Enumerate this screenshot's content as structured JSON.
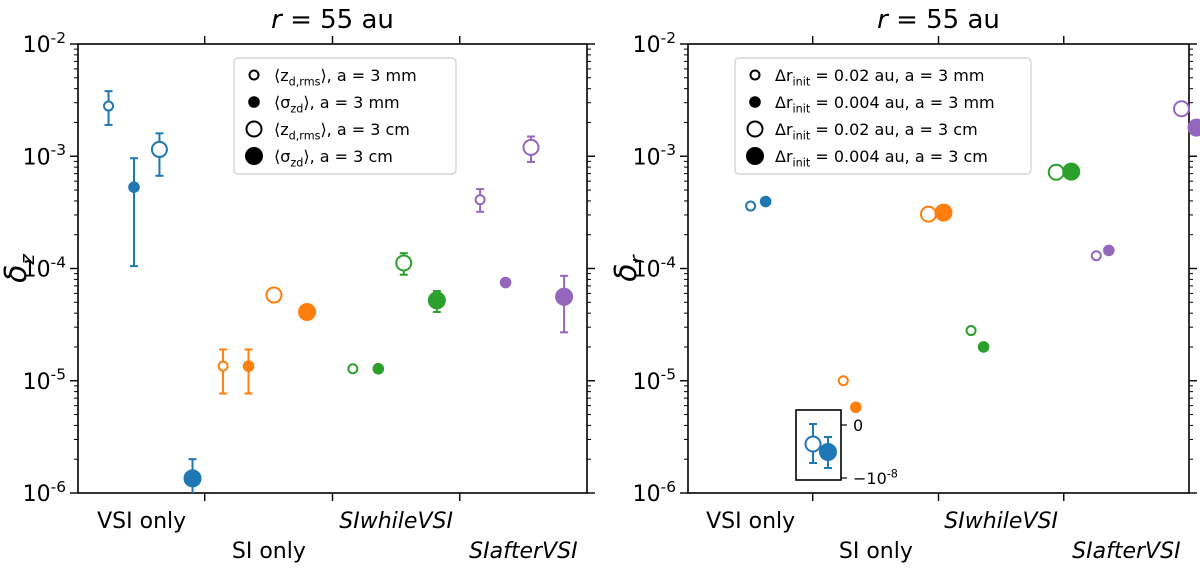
{
  "colors": {
    "VSI only": "#1f77b4",
    "SI only": "#ff7f0e",
    "SIwhileVSI": "#2ca02c",
    "SIafterVSI": "#9467bd"
  },
  "chart_data": [
    {
      "type": "scatter",
      "yscale": "log",
      "ylim": [
        1e-06,
        0.01
      ],
      "title": "r = 55 au",
      "ylabel": "δ_z",
      "ytick_labels": [
        "10^-6",
        "10^-5",
        "10^-4",
        "10^-3",
        "10^-2"
      ],
      "categories": [
        "VSI only",
        "SI only",
        "SIwhileVSI",
        "SIafterVSI"
      ],
      "category_italic": [
        false,
        false,
        true,
        true
      ],
      "legend_position": "upper center",
      "legend": [
        {
          "label": "⟨z_d,rms⟩, a = 3 mm",
          "marker": "open-small"
        },
        {
          "label": "⟨σ_zd⟩, a = 3 mm",
          "marker": "filled-small"
        },
        {
          "label": "⟨z_d,rms⟩, a = 3 cm",
          "marker": "open-large"
        },
        {
          "label": "⟨σ_zd⟩, a = 3 cm",
          "marker": "filled-large"
        }
      ],
      "points": [
        {
          "category": "VSI only",
          "series": 0,
          "y": 0.0028,
          "ylo": 0.0019,
          "yhi": 0.0038
        },
        {
          "category": "VSI only",
          "series": 1,
          "y": 0.00053,
          "ylo": 0.000105,
          "yhi": 0.00096
        },
        {
          "category": "VSI only",
          "series": 2,
          "y": 0.00115,
          "ylo": 0.00067,
          "yhi": 0.0016
        },
        {
          "category": "VSI only",
          "series": 3,
          "y": 1.35e-06,
          "ylo": 1e-06,
          "yhi": 2e-06
        },
        {
          "category": "SI only",
          "series": 0,
          "y": 1.35e-05,
          "ylo": 7.7e-06,
          "yhi": 1.9e-05
        },
        {
          "category": "SI only",
          "series": 1,
          "y": 1.35e-05,
          "ylo": 7.7e-06,
          "yhi": 1.9e-05
        },
        {
          "category": "SI only",
          "series": 2,
          "y": 5.8e-05,
          "ylo": 5.3e-05,
          "yhi": 6.4e-05
        },
        {
          "category": "SI only",
          "series": 3,
          "y": 4.1e-05,
          "ylo": 4e-05,
          "yhi": 4.2e-05
        },
        {
          "category": "SIwhileVSI",
          "series": 0,
          "y": 1.28e-05,
          "ylo": 1.23e-05,
          "yhi": 1.33e-05
        },
        {
          "category": "SIwhileVSI",
          "series": 1,
          "y": 1.28e-05,
          "ylo": 1.26e-05,
          "yhi": 1.3e-05
        },
        {
          "category": "SIwhileVSI",
          "series": 2,
          "y": 0.000112,
          "ylo": 8.8e-05,
          "yhi": 0.000137
        },
        {
          "category": "SIwhileVSI",
          "series": 3,
          "y": 5.2e-05,
          "ylo": 4.1e-05,
          "yhi": 6.3e-05
        },
        {
          "category": "SIafterVSI",
          "series": 0,
          "y": 0.00041,
          "ylo": 0.00032,
          "yhi": 0.00051
        },
        {
          "category": "SIafterVSI",
          "series": 1,
          "y": 7.5e-05,
          "ylo": 7.3e-05,
          "yhi": 7.7e-05
        },
        {
          "category": "SIafterVSI",
          "series": 2,
          "y": 0.0012,
          "ylo": 0.00089,
          "yhi": 0.0015
        },
        {
          "category": "SIafterVSI",
          "series": 3,
          "y": 5.6e-05,
          "ylo": 2.7e-05,
          "yhi": 8.6e-05
        }
      ]
    },
    {
      "type": "scatter",
      "yscale": "log",
      "ylim": [
        1e-06,
        0.01
      ],
      "title": "r = 55 au",
      "ylabel": "δ_r",
      "ytick_labels": [
        "10^-6",
        "10^-5",
        "10^-4",
        "10^-3",
        "10^-2"
      ],
      "categories": [
        "VSI only",
        "SI only",
        "SIwhileVSI",
        "SIafterVSI"
      ],
      "category_italic": [
        false,
        false,
        true,
        true
      ],
      "legend_position": "upper left",
      "legend": [
        {
          "label": "Δr_init = 0.02 au, a = 3 mm",
          "marker": "open-small"
        },
        {
          "label": "Δr_init = 0.004 au, a = 3 mm",
          "marker": "filled-small"
        },
        {
          "label": "Δr_init = 0.02 au, a = 3 cm",
          "marker": "open-large"
        },
        {
          "label": "Δr_init = 0.004 au, a = 3 cm",
          "marker": "filled-large"
        }
      ],
      "points": [
        {
          "category": "VSI only",
          "series": 0,
          "y": 0.00036,
          "ylo": 0.00034,
          "yhi": 0.00038
        },
        {
          "category": "VSI only",
          "series": 1,
          "y": 0.000395,
          "ylo": 0.000375,
          "yhi": 0.000415
        },
        {
          "category": "SI only",
          "series": 0,
          "y": 1e-05,
          "ylo": 9.8e-06,
          "yhi": 1.02e-05
        },
        {
          "category": "SI only",
          "series": 1,
          "y": 5.8e-06,
          "ylo": 5.7e-06,
          "yhi": 5.9e-06
        },
        {
          "category": "SI only",
          "series": 2,
          "y": 0.000305,
          "ylo": 0.00029,
          "yhi": 0.00032
        },
        {
          "category": "SI only",
          "series": 3,
          "y": 0.000315,
          "ylo": 0.00031,
          "yhi": 0.00032
        },
        {
          "category": "SIwhileVSI",
          "series": 0,
          "y": 2.8e-05,
          "ylo": 2.7e-05,
          "yhi": 2.9e-05
        },
        {
          "category": "SIwhileVSI",
          "series": 1,
          "y": 2e-05,
          "ylo": 1.95e-05,
          "yhi": 2.05e-05
        },
        {
          "category": "SIwhileVSI",
          "series": 2,
          "y": 0.00072,
          "ylo": 0.00066,
          "yhi": 0.00078
        },
        {
          "category": "SIwhileVSI",
          "series": 3,
          "y": 0.00073,
          "ylo": 0.00072,
          "yhi": 0.00074
        },
        {
          "category": "SIafterVSI",
          "series": 0,
          "y": 0.00013,
          "ylo": 0.000125,
          "yhi": 0.000135
        },
        {
          "category": "SIafterVSI",
          "series": 1,
          "y": 0.000145,
          "ylo": 0.00014,
          "yhi": 0.00015
        },
        {
          "category": "SIafterVSI",
          "series": 2,
          "y": 0.00265,
          "ylo": 0.0024,
          "yhi": 0.0029
        },
        {
          "category": "SIafterVSI",
          "series": 3,
          "y": 0.0018,
          "ylo": 0.00175,
          "yhi": 0.00185
        }
      ],
      "inset": {
        "ytick_labels": [
          "0",
          "−10^-8"
        ],
        "points": [
          {
            "category": "VSI only",
            "series": 2,
            "y": "~0 (negative range)"
          },
          {
            "category": "VSI only",
            "series": 3,
            "y": "~0 (negative range)"
          }
        ]
      }
    }
  ]
}
